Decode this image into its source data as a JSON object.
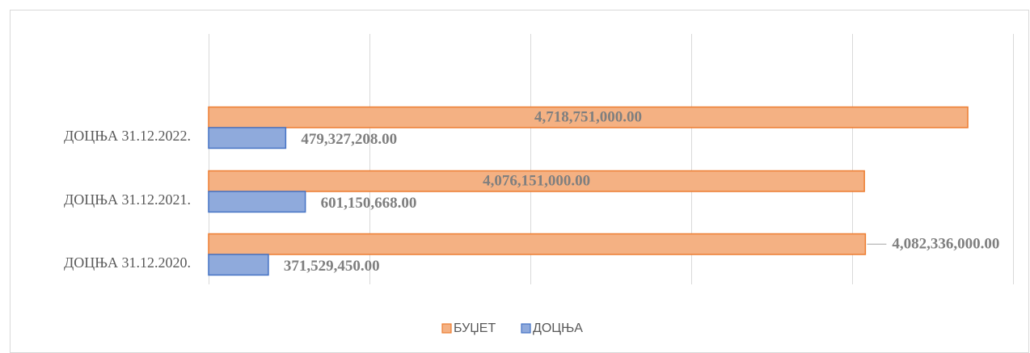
{
  "chart_data": {
    "type": "barh",
    "categories": [
      "ДОЦЊА 31.12.2022.",
      "ДОЦЊА 31.12.2021.",
      "ДОЦЊА 31.12.2020."
    ],
    "series": [
      {
        "name": "БУЏЕТ",
        "color": "#f4b183",
        "border": "#ed7d31",
        "values": [
          4718751000,
          4076151000,
          4082336000
        ],
        "value_labels": [
          "4,718,751,000.00",
          "4,076,151,000.00",
          "4,082,336,000.00"
        ]
      },
      {
        "name": "ДОЦЊА",
        "color": "#8faadc",
        "border": "#4472c4",
        "values": [
          479327208,
          601150668,
          371529450
        ],
        "value_labels": [
          "479,327,208.00",
          "601,150,668.00",
          "371,529,450.00"
        ]
      }
    ],
    "xlim": [
      0,
      5000000000
    ],
    "xticks": [
      0,
      1000000000,
      2000000000,
      3000000000,
      4000000000,
      5000000000
    ],
    "grid": true,
    "legend": "bottom"
  }
}
